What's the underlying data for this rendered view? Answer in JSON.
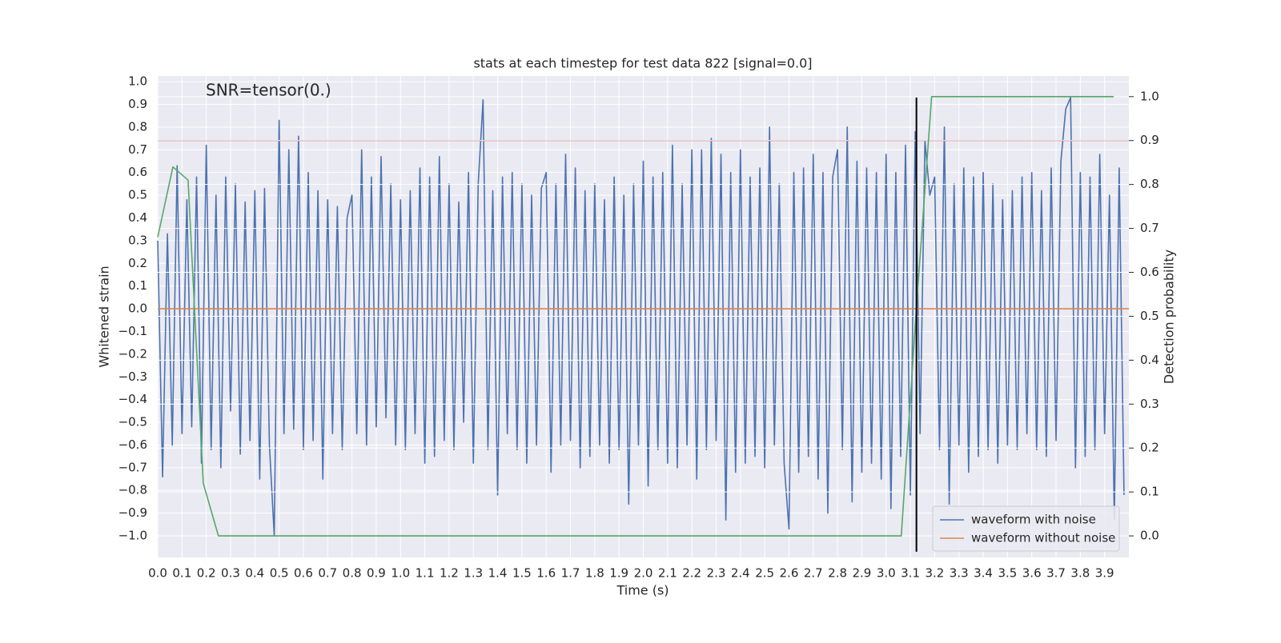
{
  "chart_data": {
    "type": "line",
    "title": "stats at each timestep for test data 822 [signal=0.0]",
    "annotation": "SNR=tensor(0.)",
    "xlabel": "Time (s)",
    "ylabel": "Whitened strain",
    "y2label": "Detection probability",
    "xlim": [
      0,
      4.0
    ],
    "ylim": [
      -1.095,
      1.025
    ],
    "y2lim": [
      -0.049,
      1.047
    ],
    "xticks": [
      {
        "value": 0,
        "label": "0.0"
      },
      0.1,
      0.2,
      0.3,
      0.4,
      0.5,
      0.6,
      0.7,
      0.8,
      0.9,
      {
        "value": 1,
        "label": "1.0"
      },
      1.1,
      1.2,
      1.3,
      1.4,
      1.5,
      1.6,
      1.7,
      1.8,
      1.9,
      {
        "value": 2,
        "label": "2.0"
      },
      2.1,
      2.2,
      2.3,
      2.4,
      2.5,
      2.6,
      2.7,
      2.8,
      2.9,
      {
        "value": 3,
        "label": "3.0"
      },
      3.1,
      3.2,
      3.3,
      3.4,
      3.5,
      3.6,
      3.7,
      3.8,
      3.9
    ],
    "yticks": [
      {
        "value": -1,
        "label": "−1.0"
      },
      {
        "value": -0.9,
        "label": "−0.9"
      },
      {
        "value": -0.8,
        "label": "−0.8"
      },
      {
        "value": -0.7,
        "label": "−0.7"
      },
      {
        "value": -0.6,
        "label": "−0.6"
      },
      {
        "value": -0.5,
        "label": "−0.5"
      },
      {
        "value": -0.4,
        "label": "−0.4"
      },
      {
        "value": -0.3,
        "label": "−0.3"
      },
      {
        "value": -0.2,
        "label": "−0.2"
      },
      {
        "value": -0.1,
        "label": "−0.1"
      },
      {
        "value": 0,
        "label": "0.0"
      },
      0.1,
      0.2,
      0.3,
      0.4,
      0.5,
      0.6,
      0.7,
      0.8,
      0.9,
      {
        "value": 1,
        "label": "1.0"
      }
    ],
    "y2ticks": [
      {
        "value": 0,
        "label": "0.0"
      },
      0.1,
      0.2,
      0.3,
      0.4,
      0.5,
      0.6,
      0.7,
      0.8,
      0.9,
      {
        "value": 1,
        "label": "1.0"
      }
    ],
    "grid": true,
    "legend": "lower right",
    "series": [
      {
        "name": "waveform with noise",
        "color": "#4c72b0",
        "x": [
          0,
          0.02,
          0.04,
          0.06,
          0.08,
          0.1,
          0.12,
          0.14,
          0.16,
          0.18,
          0.2,
          0.22,
          0.24,
          0.26,
          0.28,
          0.3,
          0.32,
          0.34,
          0.36,
          0.38,
          0.4,
          0.42,
          0.44,
          0.46,
          0.48,
          0.5,
          0.52,
          0.54,
          0.56,
          0.58,
          0.6,
          0.62,
          0.64,
          0.66,
          0.68,
          0.7,
          0.72,
          0.74,
          0.76,
          0.78,
          0.8,
          0.82,
          0.84,
          0.86,
          0.88,
          0.9,
          0.92,
          0.94,
          0.96,
          0.98,
          1,
          1.02,
          1.04,
          1.06,
          1.08,
          1.1,
          1.12,
          1.14,
          1.16,
          1.18,
          1.2,
          1.22,
          1.24,
          1.26,
          1.28,
          1.3,
          1.32,
          1.34,
          1.36,
          1.38,
          1.4,
          1.42,
          1.44,
          1.46,
          1.48,
          1.5,
          1.52,
          1.54,
          1.56,
          1.58,
          1.6,
          1.62,
          1.64,
          1.66,
          1.68,
          1.7,
          1.72,
          1.74,
          1.76,
          1.78,
          1.8,
          1.82,
          1.84,
          1.86,
          1.88,
          1.9,
          1.92,
          1.94,
          1.96,
          1.98,
          2,
          2.02,
          2.04,
          2.06,
          2.08,
          2.1,
          2.12,
          2.14,
          2.16,
          2.18,
          2.2,
          2.22,
          2.24,
          2.26,
          2.28,
          2.3,
          2.32,
          2.34,
          2.36,
          2.38,
          2.4,
          2.42,
          2.44,
          2.46,
          2.48,
          2.5,
          2.52,
          2.54,
          2.56,
          2.58,
          2.6,
          2.62,
          2.64,
          2.66,
          2.68,
          2.7,
          2.72,
          2.74,
          2.76,
          2.78,
          2.8,
          2.82,
          2.84,
          2.86,
          2.88,
          2.9,
          2.92,
          2.94,
          2.96,
          2.98,
          3,
          3.02,
          3.04,
          3.06,
          3.08,
          3.1,
          3.12,
          3.14,
          3.16,
          3.18,
          3.2,
          3.22,
          3.24,
          3.26,
          3.28,
          3.3,
          3.32,
          3.34,
          3.36,
          3.38,
          3.4,
          3.42,
          3.44,
          3.46,
          3.48,
          3.5,
          3.52,
          3.54,
          3.56,
          3.58,
          3.6,
          3.62,
          3.64,
          3.66,
          3.68,
          3.7,
          3.72,
          3.74,
          3.76,
          3.78,
          3.8,
          3.82,
          3.84,
          3.86,
          3.88,
          3.9,
          3.92,
          3.94,
          3.96,
          3.98
        ],
        "values": [
          0.3,
          -0.74,
          0.33,
          -0.6,
          0.63,
          -0.55,
          0.48,
          -0.52,
          0.58,
          -0.68,
          0.72,
          -0.62,
          0.5,
          -0.7,
          0.58,
          -0.45,
          0.55,
          -0.64,
          0.47,
          -0.58,
          0.52,
          -0.75,
          0.53,
          -0.6,
          -1.0,
          0.83,
          -0.55,
          0.7,
          -0.53,
          0.76,
          -0.62,
          0.6,
          -0.58,
          0.52,
          -0.75,
          0.48,
          -0.55,
          0.45,
          -0.62,
          0.4,
          0.5,
          -0.55,
          0.7,
          -0.6,
          0.58,
          -0.52,
          0.67,
          -0.48,
          0.55,
          -0.6,
          0.48,
          -0.62,
          0.52,
          -0.55,
          0.62,
          -0.68,
          0.58,
          -0.65,
          0.67,
          -0.58,
          0.55,
          -0.62,
          0.47,
          -0.5,
          0.6,
          -0.68,
          0.55,
          0.92,
          -0.62,
          0.52,
          -0.82,
          0.58,
          -0.55,
          0.6,
          -0.62,
          0.55,
          -0.68,
          0.5,
          -0.6,
          0.53,
          0.6,
          -0.72,
          0.55,
          -0.6,
          0.68,
          -0.58,
          0.62,
          -0.7,
          0.52,
          -0.65,
          0.55,
          -0.6,
          0.48,
          -0.68,
          0.58,
          -0.62,
          0.5,
          -0.86,
          0.55,
          -0.6,
          0.65,
          -0.78,
          0.58,
          -0.62,
          0.6,
          -0.68,
          0.72,
          -0.7,
          0.55,
          -0.6,
          0.7,
          -0.75,
          0.7,
          -0.62,
          0.75,
          -0.58,
          0.68,
          -0.93,
          0.6,
          -0.72,
          0.7,
          -0.68,
          0.58,
          -0.65,
          0.62,
          -0.7,
          0.8,
          -0.6,
          0.55,
          -0.68,
          -0.97,
          0.6,
          -0.72,
          0.62,
          -0.65,
          0.68,
          -0.75,
          0.6,
          -0.9,
          0.58,
          0.7,
          -0.62,
          0.8,
          -0.85,
          0.65,
          -0.72,
          0.62,
          -0.68,
          0.6,
          -0.75,
          0.68,
          -0.88,
          0.6,
          -0.65,
          0.72,
          -0.82,
          0.78,
          -0.55,
          0.74,
          0.5,
          0.58,
          -0.62,
          0.8,
          -0.86,
          0.55,
          -0.6,
          0.62,
          -0.72,
          0.58,
          -0.65,
          0.6,
          -0.62,
          0.55,
          -0.68,
          0.48,
          -0.6,
          0.52,
          -0.62,
          0.58,
          -0.55,
          0.6,
          -0.62,
          0.52,
          -0.65,
          0.62,
          -0.58,
          0.65,
          0.88,
          0.93,
          -0.7,
          0.6,
          -0.65,
          0.58,
          -0.62,
          0.68,
          -0.55,
          0.5,
          -0.93,
          0.62,
          -0.82
        ]
      },
      {
        "name": "waveform without noise",
        "color": "#dd8452",
        "x": [
          0,
          4.0
        ],
        "values": [
          0,
          0
        ]
      },
      {
        "color": "#55a868",
        "axis": "y2",
        "x": [
          0,
          0.0625,
          0.125,
          0.1875,
          0.25,
          0.3125,
          0.375,
          0.4375,
          0.5,
          0.5625,
          0.625,
          0.6875,
          0.75,
          0.8125,
          0.875,
          0.9375,
          1,
          1.0625,
          1.125,
          1.1875,
          1.25,
          1.3125,
          1.375,
          1.4375,
          1.5,
          1.5625,
          1.625,
          1.6875,
          1.75,
          1.8125,
          1.875,
          1.9375,
          2,
          2.0625,
          2.125,
          2.1875,
          2.25,
          2.3125,
          2.375,
          2.4375,
          2.5,
          2.5625,
          2.625,
          2.6875,
          2.75,
          2.8125,
          2.875,
          2.9375,
          3,
          3.0625,
          3.125,
          3.1875,
          3.25,
          3.3125,
          3.375,
          3.4375,
          3.5,
          3.5625,
          3.625,
          3.6875,
          3.75,
          3.8125,
          3.875,
          3.9375
        ],
        "values": [
          0.68,
          0.84,
          0.81,
          0.12,
          0,
          0,
          0,
          0,
          0,
          0,
          0,
          0,
          0,
          0,
          0,
          0,
          0,
          0,
          0,
          0,
          0,
          0,
          0,
          0,
          0,
          0,
          0,
          0,
          0,
          0,
          0,
          0,
          0,
          0,
          0,
          0,
          0,
          0,
          0,
          0,
          0,
          0,
          0,
          0,
          0,
          0,
          0,
          0,
          0,
          0,
          0.52,
          1,
          1,
          1,
          1,
          1,
          1,
          1,
          1,
          1,
          1,
          1,
          1,
          1
        ]
      }
    ],
    "hlines": [
      {
        "y": 0.9,
        "axis": "y2",
        "color": "#c44e52"
      }
    ],
    "vlines": [
      {
        "x": 3.125,
        "ymin": -1.07,
        "ymax": 0.93,
        "color": "#000000"
      }
    ]
  }
}
